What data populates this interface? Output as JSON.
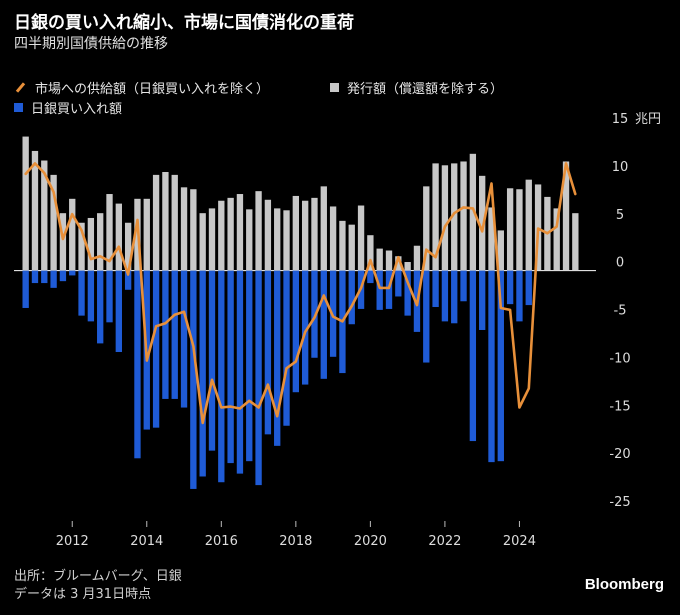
{
  "header": {
    "title": "日銀の買い入れ縮小、市場に国債消化の重荷",
    "subtitle": "四半期別国債供給の推移"
  },
  "legend": {
    "market": "市場への供給額（日銀買い入れを除く）",
    "issuance": "発行額（償還額を除する）",
    "boj": "日銀買い入れ額"
  },
  "colors": {
    "issuance": "#c8c8c8",
    "boj": "#1f5bd6",
    "market": "#e8903a",
    "background": "#000000",
    "axis_text": "#dddddd"
  },
  "footer": {
    "source": "出所：ブルームバーグ、日銀",
    "asof": "データは 3 月31日時点",
    "brand": "Bloomberg"
  },
  "chart_data": {
    "type": "bar",
    "frequency": "quarterly",
    "start": "2010-Q4",
    "end": "2025-Q1",
    "ylim": [
      -25,
      15
    ],
    "y_ticks": [
      15,
      10,
      5,
      0,
      -5,
      -10,
      -15,
      -20,
      -25
    ],
    "y_unit": "兆円",
    "x_ticks": [
      "2012",
      "2014",
      "2016",
      "2018",
      "2020",
      "2022",
      "2024"
    ],
    "series": [
      {
        "name": "発行額（償還額を除する）",
        "type": "bar",
        "values": [
          14,
          12.5,
          11.5,
          10,
          6,
          7.5,
          5,
          5.5,
          6,
          8,
          7,
          5,
          7.5,
          7.5,
          10,
          10.3,
          10,
          8.7,
          8.5,
          6,
          6.5,
          7.3,
          7.6,
          8,
          6.4,
          8.3,
          7.4,
          6.5,
          6.3,
          7.8,
          7.3,
          7.6,
          8.8,
          6.7,
          5.2,
          4.8,
          6.8,
          3.7,
          2.3,
          2.1,
          1.5,
          0.9,
          2.6,
          8.8,
          11.2,
          11,
          11.2,
          11.4,
          12.2,
          9.9,
          6.6,
          4.2,
          8.6,
          8.5,
          9.5,
          9.0,
          7.7,
          6.5,
          11.4,
          6.0
        ]
      },
      {
        "name": "日銀買い入れ額",
        "type": "bar",
        "values": [
          -3.9,
          -1.3,
          -1.3,
          -1.8,
          -1.1,
          -0.5,
          -4.7,
          -5.3,
          -7.6,
          -5.4,
          -8.5,
          -2,
          -19.6,
          -16.6,
          -16.4,
          -13.4,
          -13.4,
          -14.3,
          -22.8,
          -21.5,
          -18.8,
          -22.1,
          -20.1,
          -21.2,
          -19.9,
          -22.4,
          -17.1,
          -18.3,
          -16.2,
          -12.7,
          -11.9,
          -9.1,
          -11.3,
          -9.0,
          -10.7,
          -5.6,
          -4.0,
          -1.3,
          -4.1,
          -4.0,
          -2.7,
          -4.7,
          -6.4,
          -9.6,
          -3.8,
          -5.3,
          -5.5,
          -3.2,
          -17.8,
          -6.2,
          -20.0,
          -19.9,
          -3.5,
          -5.3,
          -3.6,
          0,
          0,
          0,
          0,
          0
        ]
      },
      {
        "name": "市場への供給額（日銀買い入れを除く）",
        "type": "line",
        "values": [
          10.1,
          11.2,
          10.2,
          8.2,
          3.3,
          5.9,
          4.2,
          1.2,
          1.5,
          1.0,
          2.5,
          -0.4,
          5.3,
          -9.4,
          -5.8,
          -5.5,
          -4.6,
          -4.3,
          -7.9,
          -15.9,
          -11.4,
          -14.3,
          -14.2,
          -14.4,
          -13.6,
          -14.3,
          -11.9,
          -15.2,
          -10.2,
          -9.5,
          -6.4,
          -4.9,
          -2.6,
          -4.8,
          -5.3,
          -3.7,
          -1.8,
          1.1,
          -1.8,
          -1.8,
          1.4,
          -1.2,
          -3.6,
          2.2,
          1.4,
          4.6,
          6.0,
          6.6,
          6.5,
          4.1,
          9.1,
          -3.9,
          -4.1,
          -14.3,
          -12.3,
          4.4,
          3.9,
          4.6,
          11.2,
          8.0
        ]
      }
    ]
  }
}
